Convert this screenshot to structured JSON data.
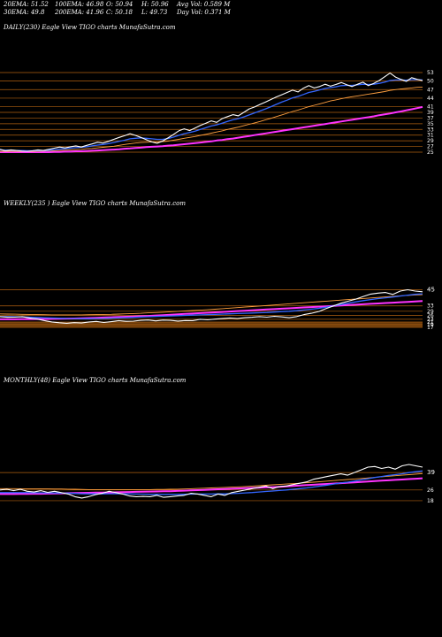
{
  "header": {
    "ema20": "20EMA: 51.52",
    "ema30": "30EMA: 49.8",
    "ema100": "100EMA: 46.98",
    "ema200": "200EMA: 41.96",
    "open": "O: 50.94",
    "close": "C: 50.18",
    "high": "H: 50.96",
    "low": "L: 49.73",
    "avgvol": "Avg Vol: 0.589 M",
    "dayvol": "Day Vol: 0.371 M"
  },
  "panels": {
    "daily": {
      "label": "DAILY(230) Eagle  View  TIGO charts MunafaSutra.com"
    },
    "weekly": {
      "label": "WEEKLY(235                    ) Eagle  View  TIGO charts MunafaSutra.com"
    },
    "monthly": {
      "label": "MONTHLY(48) Eagle  View  TIGO charts MunafaSutra.com"
    }
  },
  "colors": {
    "price": "#ffffff",
    "ema_fast": "#3366ff",
    "ema_mid": "#ffa040",
    "ema_slow": "#ff33ff",
    "level_line": "#b06010",
    "volume_fill": "#6a3a0a"
  },
  "chart_data": [
    {
      "type": "line",
      "name": "daily",
      "ylim": [
        25,
        53
      ],
      "ticks": [
        "53",
        "50",
        "47",
        "44",
        "41",
        "39",
        "37",
        "35",
        "33",
        "31",
        "29",
        "27",
        "25"
      ],
      "tick_values": [
        53,
        50,
        47,
        44,
        41,
        39,
        37,
        35,
        33,
        31,
        29,
        27,
        25
      ],
      "series": [
        {
          "role": "price",
          "values": [
            26,
            25.5,
            25.8,
            25.6,
            25.4,
            25.3,
            25.5,
            25.8,
            25.6,
            26,
            26.4,
            26.8,
            26.5,
            26.9,
            27.2,
            26.8,
            27.4,
            27.9,
            28.5,
            28.2,
            28.8,
            29.5,
            30.2,
            30.8,
            31.5,
            30.9,
            30.2,
            29.4,
            28.6,
            28.1,
            28.9,
            30,
            31.2,
            32.5,
            33.2,
            32.6,
            33.5,
            34.4,
            35.2,
            36,
            35.5,
            36.8,
            37.5,
            38.2,
            37.8,
            39,
            40.2,
            40.9,
            41.8,
            42.6,
            43.5,
            44.4,
            45.2,
            46,
            46.8,
            46.2,
            47.5,
            48.4,
            47.6,
            48.1,
            48.9,
            48.2,
            48.8,
            49.5,
            48.7,
            48.1,
            48.9,
            49.6,
            48.4,
            49.2,
            50.2,
            51.5,
            52.8,
            51.4,
            50.6,
            49.9,
            51.2,
            50.6,
            50.18
          ]
        },
        {
          "role": "ema_fast",
          "values": [
            25.8,
            25.7,
            25.7,
            25.6,
            25.6,
            25.5,
            25.5,
            25.6,
            25.6,
            25.7,
            25.9,
            26.1,
            26.2,
            26.4,
            26.6,
            26.7,
            26.9,
            27.2,
            27.5,
            27.7,
            28,
            28.4,
            28.8,
            29.2,
            29.7,
            29.9,
            30,
            29.9,
            29.7,
            29.5,
            29.5,
            29.8,
            30.3,
            30.9,
            31.5,
            31.9,
            32.4,
            33,
            33.6,
            34.2,
            34.6,
            35.2,
            35.8,
            36.4,
            36.8,
            37.4,
            38.1,
            38.8,
            39.5,
            40.2,
            41,
            41.8,
            42.6,
            43.3,
            44.1,
            44.6,
            45.3,
            46,
            46.4,
            46.9,
            47.4,
            47.7,
            48,
            48.4,
            48.5,
            48.5,
            48.7,
            48.9,
            48.8,
            48.9,
            49.2,
            49.6,
            50.2,
            50.4,
            50.4,
            50.3,
            50.5,
            50.5,
            50.4
          ]
        },
        {
          "role": "ema_mid",
          "values": [
            25.3,
            25.3,
            25.3,
            25.3,
            25.3,
            25.3,
            25.3,
            25.3,
            25.4,
            25.4,
            25.5,
            25.6,
            25.7,
            25.8,
            25.9,
            26,
            26.2,
            26.3,
            26.5,
            26.7,
            26.9,
            27.1,
            27.4,
            27.7,
            28,
            28.2,
            28.4,
            28.5,
            28.6,
            28.6,
            28.7,
            28.9,
            29.2,
            29.5,
            29.9,
            30.2,
            30.5,
            30.9,
            31.3,
            31.7,
            32.1,
            32.5,
            33,
            33.4,
            33.8,
            34.3,
            34.8,
            35.3,
            35.8,
            36.4,
            36.9,
            37.5,
            38.1,
            38.7,
            39.3,
            39.8,
            40.4,
            41,
            41.5,
            42,
            42.5,
            43,
            43.4,
            43.8,
            44.2,
            44.5,
            44.8,
            45.1,
            45.4,
            45.7,
            46,
            46.3,
            46.7,
            47,
            47.2,
            47.4,
            47.6,
            47.8,
            47.9
          ]
        },
        {
          "role": "ema_slow",
          "values": [
            25,
            25,
            25,
            25,
            25,
            25,
            25,
            25,
            25,
            25,
            25.1,
            25.1,
            25.2,
            25.2,
            25.3,
            25.3,
            25.4,
            25.5,
            25.6,
            25.7,
            25.8,
            25.9,
            26,
            26.2,
            26.3,
            26.5,
            26.6,
            26.8,
            26.9,
            27,
            27.1,
            27.3,
            27.4,
            27.6,
            27.8,
            28,
            28.2,
            28.4,
            28.6,
            28.8,
            29.1,
            29.3,
            29.6,
            29.8,
            30.1,
            30.4,
            30.7,
            31,
            31.3,
            31.6,
            31.9,
            32.2,
            32.5,
            32.8,
            33.1,
            33.4,
            33.7,
            34,
            34.3,
            34.6,
            34.9,
            35.2,
            35.5,
            35.8,
            36.1,
            36.4,
            36.7,
            37,
            37.3,
            37.6,
            38,
            38.3,
            38.6,
            39,
            39.3,
            39.7,
            40.1,
            40.5,
            40.9
          ]
        }
      ]
    },
    {
      "type": "line",
      "name": "weekly",
      "ylim": [
        17,
        46
      ],
      "ticks": [
        "45",
        "33",
        "29",
        "26",
        "23",
        "21",
        "19",
        "17"
      ],
      "tick_values": [
        45,
        33,
        29,
        26,
        23,
        21,
        19,
        17
      ],
      "series": [
        {
          "role": "price",
          "values": [
            25,
            24.5,
            24.6,
            25,
            24,
            23.2,
            22,
            21,
            20.4,
            20,
            20.5,
            20.2,
            21,
            21.4,
            20.6,
            21.2,
            22,
            21.5,
            21.6,
            22.2,
            22.5,
            21.8,
            22.4,
            22.2,
            21.7,
            22.1,
            22,
            23,
            22.6,
            23.1,
            23.5,
            24,
            23.6,
            24.2,
            24.5,
            25,
            24.6,
            25.2,
            24.8,
            24.2,
            25,
            26.5,
            27.5,
            28.8,
            31,
            33,
            35,
            36.5,
            38,
            40,
            41.8,
            42.5,
            43,
            41.5,
            44,
            45,
            44,
            43.5
          ]
        },
        {
          "role": "ema_fast",
          "values": [
            25,
            25,
            24.9,
            24.8,
            24.6,
            24.4,
            24.2,
            24,
            23.8,
            23.6,
            23.5,
            23.4,
            23.4,
            23.5,
            23.6,
            23.8,
            24,
            24.2,
            24.4,
            24.7,
            24.9,
            25.1,
            25.3,
            25.5,
            25.7,
            25.9,
            26.1,
            26.3,
            26.5,
            26.7,
            26.9,
            27.1,
            27.3,
            27.5,
            27.7,
            27.9,
            28.1,
            28.4,
            28.7,
            29,
            29.4,
            29.9,
            30.5,
            31.2,
            32,
            33,
            34,
            35,
            36,
            36.9,
            37.7,
            38.4,
            39,
            39.6,
            40.3,
            41,
            41.6,
            42
          ]
        },
        {
          "role": "ema_mid",
          "values": [
            27,
            26.9,
            26.8,
            26.7,
            26.6,
            26.5,
            26.4,
            26.3,
            26.3,
            26.3,
            26.3,
            26.3,
            26.4,
            26.5,
            26.6,
            26.7,
            26.9,
            27.1,
            27.3,
            27.5,
            27.8,
            28,
            28.3,
            28.6,
            28.9,
            29.2,
            29.5,
            29.8,
            30.1,
            30.5,
            30.9,
            31.3,
            31.7,
            32.1,
            32.5,
            32.9,
            33.3,
            33.7,
            34.1,
            34.5,
            34.9,
            35.3,
            35.7,
            36.1,
            36.5,
            36.9,
            37.3,
            37.7,
            38.1,
            38.5,
            38.9,
            39.3,
            39.7,
            40.1,
            40.5,
            40.8,
            41.1,
            41.4
          ]
        },
        {
          "role": "ema_slow",
          "values": [
            23,
            23,
            23,
            23.1,
            23.1,
            23.2,
            23.2,
            23.3,
            23.4,
            23.5,
            23.6,
            23.7,
            23.9,
            24.1,
            24.3,
            24.5,
            24.7,
            24.9,
            25.1,
            25.3,
            25.5,
            25.8,
            26.1,
            26.4,
            26.7,
            27,
            27.3,
            27.6,
            27.9,
            28.2,
            28.5,
            28.8,
            29.1,
            29.4,
            29.7,
            30,
            30.3,
            30.6,
            30.9,
            31.2,
            31.5,
            31.8,
            32.1,
            32.4,
            32.7,
            33,
            33.3,
            33.6,
            33.9,
            34.2,
            34.5,
            34.8,
            35.1,
            35.4,
            35.7,
            36,
            36.3,
            36.6
          ]
        }
      ]
    },
    {
      "type": "line",
      "name": "monthly",
      "ylim": [
        14,
        45
      ],
      "ticks": [
        "39",
        "26",
        "18"
      ],
      "tick_values": [
        39,
        26,
        18
      ],
      "series": [
        {
          "role": "price",
          "values": [
            26,
            26.5,
            25.5,
            26.5,
            25,
            24.5,
            25.5,
            24.2,
            25,
            24,
            23,
            21,
            20,
            21,
            22.5,
            23.5,
            25,
            24,
            23,
            21.5,
            21,
            21.2,
            21,
            22,
            20.5,
            21,
            21.5,
            22,
            23.5,
            23,
            22,
            21,
            23,
            22,
            24,
            25,
            26,
            27,
            28,
            29,
            27,
            28.5,
            29,
            30,
            31,
            32,
            34,
            35,
            36,
            37,
            38,
            37,
            39,
            41,
            43,
            43.5,
            42,
            43,
            41.5,
            44,
            45,
            44,
            43
          ]
        },
        {
          "role": "ema_fast",
          "values": [
            24,
            24,
            24,
            24,
            24,
            23.9,
            23.9,
            23.8,
            23.8,
            23.7,
            23.6,
            23.4,
            23.2,
            23.1,
            23.1,
            23.1,
            23.2,
            23.2,
            23.2,
            23.1,
            23,
            22.9,
            22.8,
            22.8,
            22.7,
            22.7,
            22.7,
            22.8,
            22.9,
            23,
            23,
            23,
            23.1,
            23.1,
            23.3,
            23.5,
            23.8,
            24.1,
            24.5,
            24.9,
            25.2,
            25.6,
            26,
            26.5,
            27,
            27.5,
            28.2,
            28.9,
            29.6,
            30.4,
            31.2,
            31.8,
            32.6,
            33.5,
            34.4,
            35.3,
            36,
            36.8,
            37.4,
            38.1,
            38.9,
            39.6,
            40.2
          ]
        },
        {
          "role": "ema_mid",
          "values": [
            27,
            27,
            27,
            26.9,
            26.9,
            26.9,
            26.8,
            26.8,
            26.7,
            26.7,
            26.6,
            26.5,
            26.4,
            26.3,
            26.3,
            26.3,
            26.3,
            26.3,
            26.3,
            26.3,
            26.3,
            26.3,
            26.3,
            26.4,
            26.4,
            26.5,
            26.6,
            26.7,
            26.9,
            27.1,
            27.3,
            27.5,
            27.7,
            27.9,
            28.1,
            28.3,
            28.6,
            28.9,
            29.2,
            29.5,
            29.8,
            30.1,
            30.4,
            30.7,
            31,
            31.4,
            31.8,
            32.2,
            32.6,
            33,
            33.4,
            33.8,
            34.2,
            34.6,
            35,
            35.4,
            35.8,
            36.2,
            36.6,
            37,
            37.4,
            37.8,
            38.2
          ]
        },
        {
          "role": "ema_slow",
          "values": [
            23,
            23,
            23,
            23.1,
            23.1,
            23.2,
            23.2,
            23.3,
            23.4,
            23.5,
            23.6,
            23.7,
            23.8,
            23.9,
            24,
            24.1,
            24.2,
            24.3,
            24.4,
            24.5,
            24.6,
            24.7,
            24.8,
            24.9,
            25,
            25.1,
            25.3,
            25.5,
            25.7,
            25.9,
            26.1,
            26.3,
            26.5,
            26.7,
            26.9,
            27.1,
            27.3,
            27.5,
            27.7,
            27.9,
            28.1,
            28.4,
            28.7,
            29,
            29.3,
            29.6,
            29.9,
            30.2,
            30.5,
            30.8,
            31.1,
            31.4,
            31.7,
            32,
            32.3,
            32.6,
            32.9,
            33.2,
            33.5,
            33.8,
            34.1,
            34.4,
            34.7
          ]
        }
      ]
    }
  ]
}
